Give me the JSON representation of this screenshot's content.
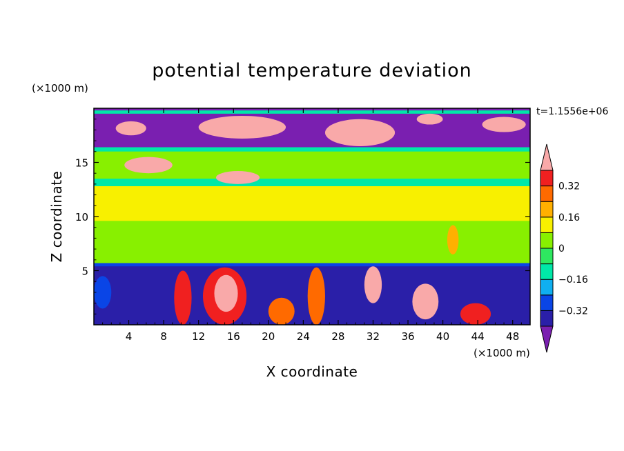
{
  "chart_data": {
    "type": "heatmap",
    "title": "potential temperature deviation",
    "xlabel": "X coordinate",
    "ylabel": "Z coordinate",
    "x_unit": "(×1000 m)",
    "y_unit": "(×1000 m)",
    "time_label": "t=1.1556e+06",
    "xlim": [
      0,
      50
    ],
    "ylim": [
      0,
      20
    ],
    "x_ticks": [
      4,
      8,
      12,
      16,
      20,
      24,
      28,
      32,
      36,
      40,
      44,
      48
    ],
    "y_ticks": [
      5,
      10,
      15
    ],
    "colorbar": {
      "levels": [
        -0.4,
        -0.32,
        -0.24,
        -0.16,
        -0.08,
        0,
        0.08,
        0.16,
        0.24,
        0.32,
        0.4
      ],
      "labels": [
        "0.32",
        "0.16",
        "0",
        "−0.16",
        "−0.32"
      ],
      "label_values": [
        0.32,
        0.16,
        0,
        -0.16,
        -0.32
      ],
      "colors": [
        "#7A1FB0",
        "#2A1FA8",
        "#0A45E6",
        "#10AFF0",
        "#00E8A8",
        "#2EE860",
        "#88F000",
        "#F8F000",
        "#FFB000",
        "#FF6A00",
        "#F02020",
        "#F9A9A9"
      ],
      "extend": "both"
    },
    "regions": [
      {
        "x": [
          0,
          50
        ],
        "z": [
          0,
          5.5
        ],
        "value": -0.35
      },
      {
        "x": [
          0,
          50
        ],
        "z": [
          5.5,
          16.3
        ],
        "value": 0.05
      },
      {
        "x": [
          0,
          50
        ],
        "z": [
          16.3,
          20
        ],
        "value": -0.42
      },
      {
        "x": [
          0,
          50
        ],
        "z": [
          12.8,
          13.5
        ],
        "value": -0.12
      },
      {
        "x": [
          0,
          50
        ],
        "z": [
          16.0,
          16.4
        ],
        "value": -0.12
      },
      {
        "x": [
          0,
          50
        ],
        "z": [
          19.5,
          19.8
        ],
        "value": -0.14
      },
      {
        "x": [
          0,
          50
        ],
        "z": [
          5.4,
          5.7
        ],
        "value": -0.25
      },
      {
        "x": [
          0,
          50
        ],
        "z": [
          9.6,
          12.8
        ],
        "value": 0.1
      },
      {
        "x": [
          0,
          50
        ],
        "z": [
          13.5,
          16.0
        ],
        "value": 0.03
      },
      {
        "x": [
          12.5,
          17.5
        ],
        "z": [
          0,
          5.3
        ],
        "value": 0.33
      },
      {
        "x": [
          13.8,
          16.5
        ],
        "z": [
          1.2,
          4.6
        ],
        "value": 0.45
      },
      {
        "x": [
          24.5,
          26.5
        ],
        "z": [
          0,
          5.3
        ],
        "value": 0.26
      },
      {
        "x": [
          31.0,
          33.0
        ],
        "z": [
          2.0,
          5.4
        ],
        "value": 0.45
      },
      {
        "x": [
          36.5,
          39.5
        ],
        "z": [
          0.5,
          3.8
        ],
        "value": 0.45
      },
      {
        "x": [
          9.2,
          11.2
        ],
        "z": [
          0,
          5.0
        ],
        "value": 0.36
      },
      {
        "x": [
          20.0,
          23.0
        ],
        "z": [
          0,
          2.5
        ],
        "value": 0.3
      },
      {
        "x": [
          42.0,
          45.5
        ],
        "z": [
          0,
          2.0
        ],
        "value": 0.32
      },
      {
        "x": [
          12.0,
          22.0
        ],
        "z": [
          17.2,
          19.3
        ],
        "value": 0.45
      },
      {
        "x": [
          26.5,
          34.5
        ],
        "z": [
          16.5,
          19.0
        ],
        "value": 0.45
      },
      {
        "x": [
          3.5,
          9.0
        ],
        "z": [
          14.0,
          15.5
        ],
        "value": 0.45
      },
      {
        "x": [
          14.0,
          19.0
        ],
        "z": [
          13.0,
          14.2
        ],
        "value": 0.45
      },
      {
        "x": [
          2.5,
          6.0
        ],
        "z": [
          17.5,
          18.8
        ],
        "value": 0.45
      },
      {
        "x": [
          44.5,
          49.5
        ],
        "z": [
          17.8,
          19.2
        ],
        "value": 0.45
      },
      {
        "x": [
          37.0,
          40.0
        ],
        "z": [
          18.5,
          19.5
        ],
        "value": 0.45
      },
      {
        "x": [
          40.5,
          41.8
        ],
        "z": [
          6.5,
          9.2
        ],
        "value": 0.16
      },
      {
        "x": [
          0,
          2.0
        ],
        "z": [
          1.5,
          4.5
        ],
        "value": -0.3
      }
    ]
  }
}
